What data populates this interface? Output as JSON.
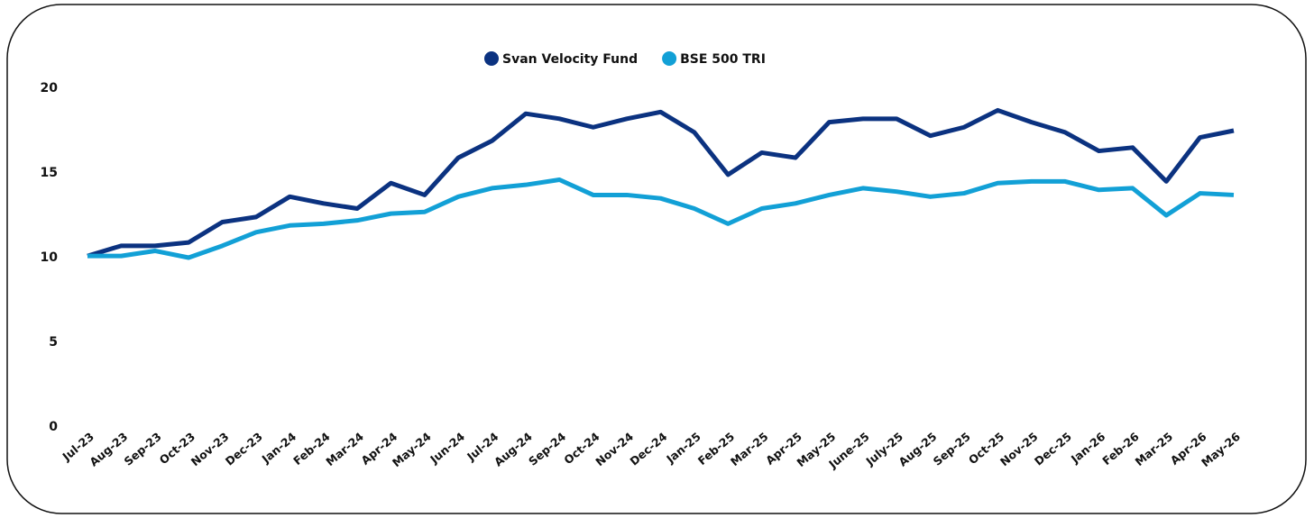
{
  "chart_data": {
    "type": "line",
    "categories": [
      "Jul-23",
      "Aug-23",
      "Sep-23",
      "Oct-23",
      "Nov-23",
      "Dec-23",
      "Jan-24",
      "Feb-24",
      "Mar-24",
      "Apr-24",
      "May-24",
      "Jun-24",
      "Jul-24",
      "Aug-24",
      "Sep-24",
      "Oct-24",
      "Nov-24",
      "Dec-24",
      "Jan-25",
      "Feb-25",
      "Mar-25",
      "Apr-25",
      "May-25",
      "June-25",
      "July-25",
      "Aug-25",
      "Sep-25",
      "Oct-25",
      "Nov-25",
      "Dec-25",
      "Jan-26",
      "Feb-26",
      "Mar-25",
      "Apr-26",
      "May-26"
    ],
    "series": [
      {
        "name": "Svan Velocity Fund",
        "color": "#0b3280",
        "values": [
          10.1,
          10.7,
          10.7,
          10.9,
          12.1,
          12.4,
          13.6,
          13.2,
          12.9,
          14.4,
          13.7,
          15.9,
          16.9,
          18.5,
          18.2,
          17.7,
          18.2,
          18.6,
          17.4,
          14.9,
          16.2,
          15.9,
          18.0,
          18.2,
          18.2,
          17.2,
          17.7,
          18.7,
          18.0,
          17.4,
          16.3,
          16.5,
          14.5,
          17.1,
          17.5
        ]
      },
      {
        "name": "BSE 500 TRI",
        "color": "#12a0d6",
        "values": [
          10.1,
          10.1,
          10.4,
          10.0,
          10.7,
          11.5,
          11.9,
          12.0,
          12.2,
          12.6,
          12.7,
          13.6,
          14.1,
          14.3,
          14.6,
          13.7,
          13.7,
          13.5,
          12.9,
          12.0,
          12.9,
          13.2,
          13.7,
          14.1,
          13.9,
          13.6,
          13.8,
          14.4,
          14.5,
          14.5,
          14.0,
          14.1,
          12.5,
          13.8,
          13.7
        ]
      }
    ],
    "ylim": [
      0,
      20
    ],
    "yticks": [
      0,
      5,
      10,
      15,
      20
    ],
    "grid": false,
    "legend": "top"
  }
}
